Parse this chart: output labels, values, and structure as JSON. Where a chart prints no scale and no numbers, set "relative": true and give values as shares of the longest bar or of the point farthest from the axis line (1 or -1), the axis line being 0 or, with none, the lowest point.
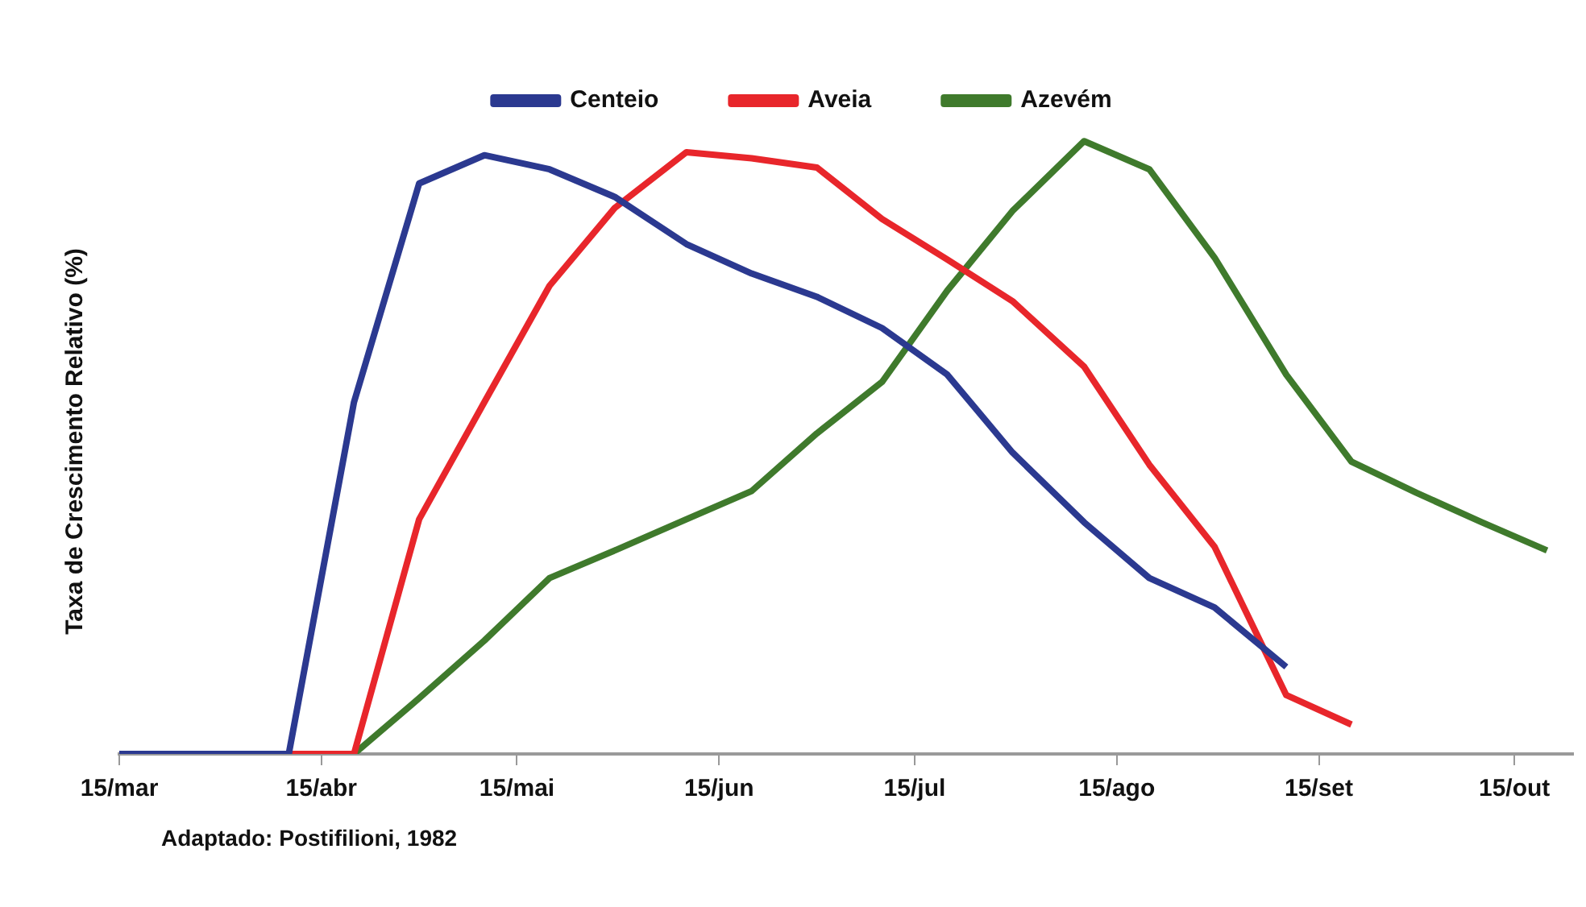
{
  "chart_data": {
    "type": "line",
    "relative": true,
    "ylabel": "Taxa de Crescimento Relativo (%)",
    "legend": "top",
    "grid": false,
    "marker": "none",
    "line_style": "solid",
    "xlim": [
      "--03-15",
      "--10-24"
    ],
    "xticks": [
      {
        "value": "--03-15",
        "label": "15/mar"
      },
      {
        "value": "--04-15",
        "label": "15/abr"
      },
      {
        "value": "--05-15",
        "label": "15/mai"
      },
      {
        "value": "--06-15",
        "label": "15/jun"
      },
      {
        "value": "--07-15",
        "label": "15/jul"
      },
      {
        "value": "--08-15",
        "label": "15/ago"
      },
      {
        "value": "--09-15",
        "label": "15/set"
      },
      {
        "value": "--10-15",
        "label": "15/out"
      }
    ],
    "series": [
      {
        "name": "Centeio",
        "color": "#2b3990",
        "x": [
          "--03-15",
          "--04-10",
          "--04-20",
          "--04-30",
          "--05-10",
          "--05-20",
          "--05-30",
          "--06-10",
          "--06-20",
          "--06-30",
          "--07-10",
          "--07-20",
          "--07-30",
          "--08-10",
          "--08-20",
          "--08-30",
          "--09-10"
        ],
        "values": [
          0,
          0,
          0.574,
          0.931,
          0.977,
          0.954,
          0.909,
          0.832,
          0.784,
          0.746,
          0.695,
          0.619,
          0.492,
          0.378,
          0.287,
          0.239,
          0.142
        ]
      },
      {
        "name": "Aveia",
        "color": "#e8262b",
        "x": [
          "--03-15",
          "--04-20",
          "--04-30",
          "--05-10",
          "--05-20",
          "--05-30",
          "--06-10",
          "--06-20",
          "--06-30",
          "--07-10",
          "--07-20",
          "--07-30",
          "--08-10",
          "--08-20",
          "--08-30",
          "--09-10",
          "--09-20"
        ],
        "values": [
          0,
          0,
          0.383,
          0.574,
          0.764,
          0.891,
          0.982,
          0.972,
          0.957,
          0.873,
          0.807,
          0.739,
          0.632,
          0.472,
          0.338,
          0.096,
          0.048
        ]
      },
      {
        "name": "Azevém",
        "color": "#3f7a2c",
        "x": [
          "--03-15",
          "--04-20",
          "--04-30",
          "--05-10",
          "--05-20",
          "--05-30",
          "--06-10",
          "--06-20",
          "--06-30",
          "--07-10",
          "--07-20",
          "--07-30",
          "--08-10",
          "--08-20",
          "--08-30",
          "--09-10",
          "--09-20",
          "--09-30",
          "--10-10",
          "--10-20"
        ],
        "values": [
          0,
          0,
          0.091,
          0.185,
          0.287,
          0.332,
          0.383,
          0.429,
          0.523,
          0.607,
          0.756,
          0.886,
          1,
          0.954,
          0.81,
          0.619,
          0.477,
          0.426,
          0.378,
          0.332
        ]
      }
    ],
    "annotations": [
      "Adaptado: Postifilioni, 1982"
    ]
  }
}
